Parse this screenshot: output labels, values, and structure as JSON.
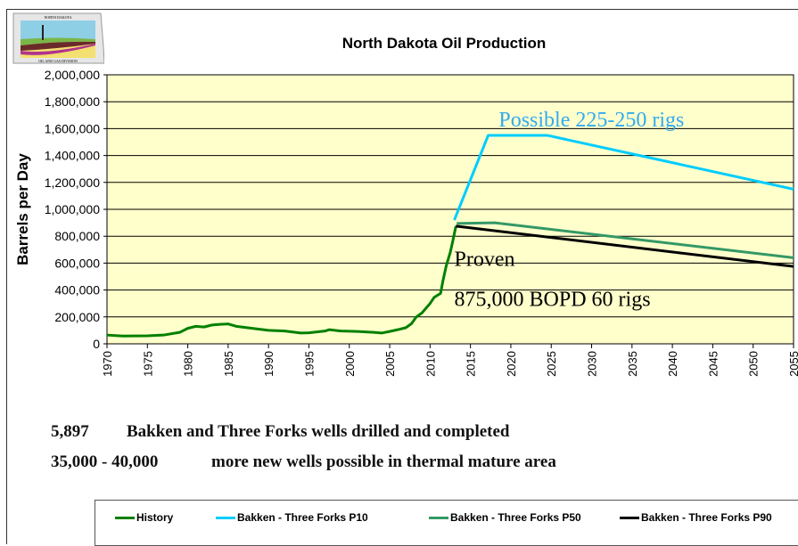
{
  "logo": {
    "top_text": "NORTH DAKOTA",
    "bottom_text": "OIL AND GAS DIVISION"
  },
  "chart_data": {
    "type": "line",
    "title": "North Dakota Oil Production",
    "ylabel": "Barrels per Day",
    "xlabel": "",
    "xlim": [
      1970,
      2055
    ],
    "ylim": [
      0,
      2000000
    ],
    "xticks": [
      1970,
      1975,
      1980,
      1985,
      1990,
      1995,
      2000,
      2005,
      2010,
      2015,
      2020,
      2025,
      2030,
      2035,
      2040,
      2045,
      2050,
      2055
    ],
    "yticks": [
      "0",
      "200,000",
      "400,000",
      "600,000",
      "800,000",
      "1,000,000",
      "1,200,000",
      "1,400,000",
      "1,600,000",
      "1,800,000",
      "2,000,000"
    ],
    "grid": "horizontal",
    "background": "#ffffcc",
    "legend_position": "bottom",
    "series": [
      {
        "name": "History",
        "color": "#008000",
        "points": [
          [
            1970,
            65000
          ],
          [
            1972,
            58000
          ],
          [
            1975,
            60000
          ],
          [
            1977,
            65000
          ],
          [
            1979,
            85000
          ],
          [
            1980,
            115000
          ],
          [
            1981,
            130000
          ],
          [
            1982,
            125000
          ],
          [
            1983,
            140000
          ],
          [
            1984,
            145000
          ],
          [
            1985,
            148000
          ],
          [
            1986,
            130000
          ],
          [
            1988,
            115000
          ],
          [
            1990,
            100000
          ],
          [
            1992,
            95000
          ],
          [
            1994,
            80000
          ],
          [
            1995,
            82000
          ],
          [
            1997,
            95000
          ],
          [
            1997.5,
            105000
          ],
          [
            1999,
            95000
          ],
          [
            2001,
            92000
          ],
          [
            2003,
            85000
          ],
          [
            2004,
            80000
          ],
          [
            2005,
            92000
          ],
          [
            2006,
            105000
          ],
          [
            2007,
            120000
          ],
          [
            2007.7,
            150000
          ],
          [
            2008.3,
            200000
          ],
          [
            2009,
            230000
          ],
          [
            2010,
            300000
          ],
          [
            2010.5,
            345000
          ],
          [
            2011.3,
            375000
          ],
          [
            2011.6,
            470000
          ],
          [
            2012,
            580000
          ],
          [
            2012.5,
            680000
          ],
          [
            2012.8,
            760000
          ],
          [
            2013.2,
            875000
          ]
        ]
      },
      {
        "name": "Bakken - Three Forks P10",
        "color": "#00ccff",
        "points": [
          [
            2013,
            920000
          ],
          [
            2017.2,
            1550000
          ],
          [
            2024.5,
            1550000
          ],
          [
            2055,
            1150000
          ]
        ]
      },
      {
        "name": "Bakken - Three Forks P50",
        "color": "#339966",
        "points": [
          [
            2013.3,
            895000
          ],
          [
            2018,
            900000
          ],
          [
            2055,
            640000
          ]
        ]
      },
      {
        "name": "Bakken - Three Forks P90",
        "color": "#000000",
        "points": [
          [
            2013.2,
            875000
          ],
          [
            2055,
            575000
          ]
        ]
      }
    ],
    "annotations": [
      {
        "text": "Possible 225-250 rigs",
        "color": "#33aaee",
        "x": 2018.5,
        "y": 1615000
      },
      {
        "text": "Proven",
        "color": "#000000",
        "x": 2013,
        "y": 580000
      },
      {
        "text": "875,000 BOPD 60 rigs",
        "color": "#000000",
        "x": 2013,
        "y": 280000
      }
    ]
  },
  "notes": [
    {
      "number": "5,897",
      "text": "Bakken and Three Forks wells drilled and completed"
    },
    {
      "number": "35,000 - 40,000",
      "text": "more new wells possible in thermal mature area"
    }
  ]
}
